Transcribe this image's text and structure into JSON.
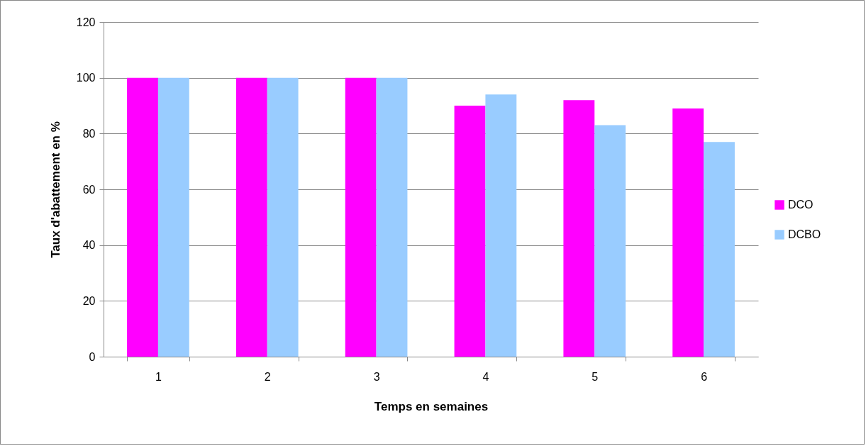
{
  "chart_data": {
    "type": "bar",
    "xlabel": "Temps en semaines",
    "ylabel": "Taux d'abattement en %",
    "categories": [
      "1",
      "2",
      "3",
      "4",
      "5",
      "6"
    ],
    "series": [
      {
        "name": "DCO",
        "color": "#ff00ff",
        "values": [
          100,
          100,
          100,
          90,
          92,
          89
        ]
      },
      {
        "name": "DCBO",
        "color": "#99ccff",
        "values": [
          100,
          100,
          100,
          94,
          83,
          77
        ]
      }
    ],
    "ylim": [
      0,
      120
    ],
    "yticks": [
      0,
      20,
      40,
      60,
      80,
      100,
      120
    ],
    "grid": "y",
    "legend": "right"
  }
}
